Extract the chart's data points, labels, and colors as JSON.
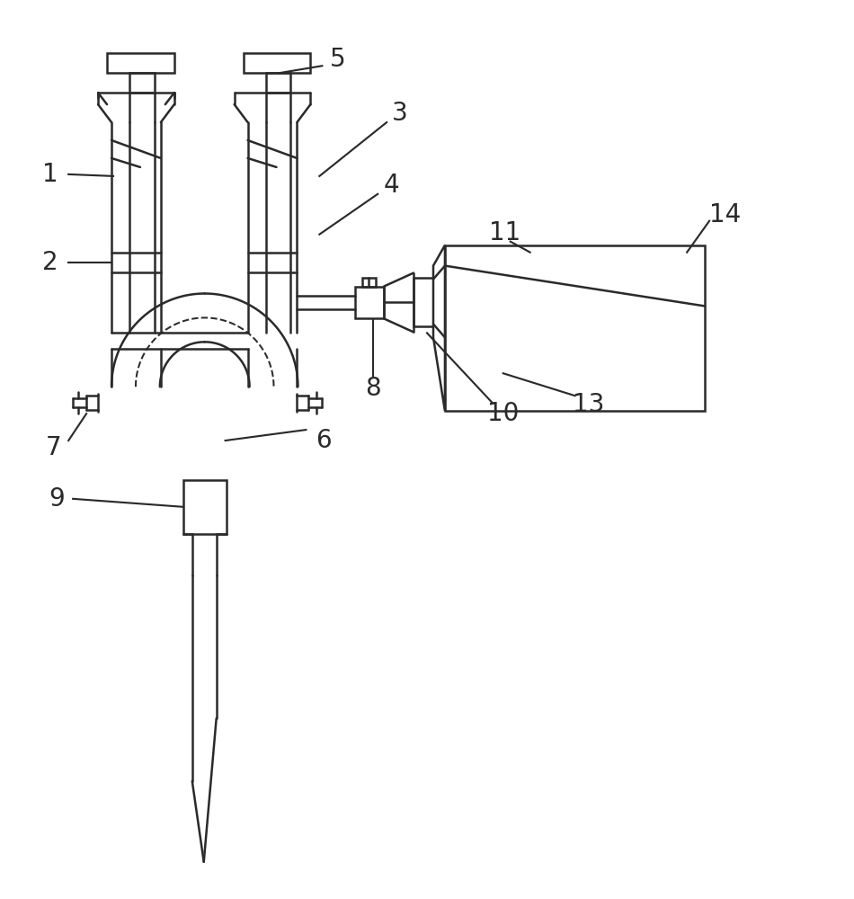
{
  "bg_color": "#ffffff",
  "line_color": "#2a2a2a",
  "lw": 1.8,
  "figsize": [
    9.5,
    10.0
  ],
  "dpi": 100
}
